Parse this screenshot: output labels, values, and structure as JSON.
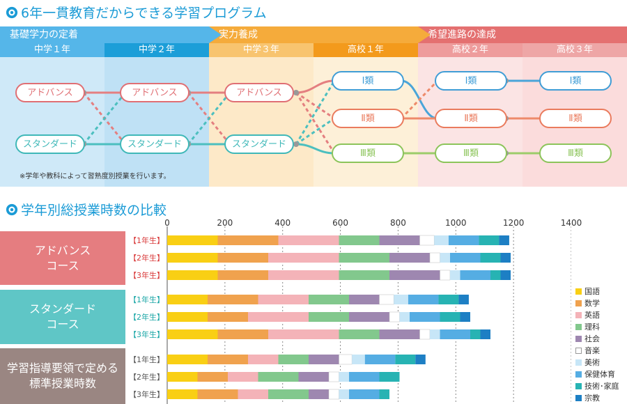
{
  "section1": {
    "title": "6年一貫教育だからできる学習プログラム",
    "phases": [
      {
        "label": "基礎学力の定着",
        "color": "#55b6e9"
      },
      {
        "label": "実力養成",
        "color": "#f5ab3b"
      },
      {
        "label": "希望進路の達成",
        "color": "#e47070"
      }
    ],
    "grades": [
      {
        "label": "中学１年",
        "color": "#55b6e9",
        "bg": "#cfe9f8"
      },
      {
        "label": "中学２年",
        "color": "#1c9ed8",
        "bg": "#bfe1f5"
      },
      {
        "label": "中学３年",
        "color": "#f8c46f",
        "bg": "#fde9c8"
      },
      {
        "label": "高校１年",
        "color": "#f39a1c",
        "bg": "#fdf0d8"
      },
      {
        "label": "高校２年",
        "color": "#ee9c9c",
        "bg": "#fbe4e4"
      },
      {
        "label": "高校３年",
        "color": "#eea6a6",
        "bg": "#fbdcdc"
      }
    ],
    "courses": {
      "advance": "アドバンス",
      "standard": "スタンダード"
    },
    "classes": [
      "Ⅰ類",
      "Ⅱ類",
      "Ⅲ類"
    ],
    "note": "※学年や教科によって習熟度別授業を行います。"
  },
  "section2": {
    "title": "学年別総授業時数の比較",
    "groups": [
      {
        "label": "アドバンス\nコース",
        "color": "#e57d80"
      },
      {
        "label": "スタンダード\nコース",
        "color": "#5fc6c6"
      },
      {
        "label": "学習指導要領で定める\n標準授業時数",
        "color": "#9a8682"
      }
    ]
  },
  "chart_data": {
    "type": "bar",
    "orientation": "horizontal",
    "stacked": true,
    "xlim": [
      0,
      1400
    ],
    "xticks": [
      0,
      200,
      400,
      600,
      800,
      1000,
      1200,
      1400
    ],
    "legend_position": "right",
    "subjects": [
      {
        "name": "国語",
        "color": "#f9cf14"
      },
      {
        "name": "数学",
        "color": "#f0a24e"
      },
      {
        "name": "英語",
        "color": "#f4b3b8"
      },
      {
        "name": "理科",
        "color": "#82c88d"
      },
      {
        "name": "社会",
        "color": "#9e87b0"
      },
      {
        "name": "音楽",
        "color": "#ffffff"
      },
      {
        "name": "美術",
        "color": "#c7e6f7"
      },
      {
        "name": "保健体育",
        "color": "#55ade3"
      },
      {
        "name": "技術･家庭",
        "color": "#27b3b3"
      },
      {
        "name": "宗教",
        "color": "#1d7fc4"
      }
    ],
    "rows": [
      {
        "group": 0,
        "label": "【1年生】",
        "values": [
          175,
          210,
          210,
          140,
          140,
          50,
          50,
          105,
          70,
          35
        ]
      },
      {
        "group": 0,
        "label": "【2年生】",
        "values": [
          175,
          175,
          245,
          175,
          140,
          35,
          35,
          105,
          70,
          35
        ]
      },
      {
        "group": 0,
        "label": "【3年生】",
        "values": [
          175,
          175,
          245,
          175,
          175,
          35,
          35,
          105,
          35,
          35
        ]
      },
      {
        "group": 1,
        "label": "【1年生】",
        "values": [
          140,
          175,
          175,
          140,
          105,
          50,
          50,
          105,
          70,
          35
        ]
      },
      {
        "group": 1,
        "label": "【2年生】",
        "values": [
          140,
          140,
          210,
          140,
          140,
          35,
          35,
          105,
          70,
          35
        ]
      },
      {
        "group": 1,
        "label": "【3年生】",
        "values": [
          175,
          175,
          245,
          140,
          140,
          35,
          35,
          105,
          35,
          35
        ]
      },
      {
        "group": 2,
        "label": "【1年生】",
        "values": [
          140,
          140,
          105,
          105,
          105,
          45,
          45,
          105,
          70,
          35
        ]
      },
      {
        "group": 2,
        "label": "【2年生】",
        "values": [
          105,
          105,
          105,
          140,
          105,
          35,
          35,
          105,
          70,
          0
        ]
      },
      {
        "group": 2,
        "label": "【3年生】",
        "values": [
          105,
          140,
          105,
          140,
          70,
          35,
          35,
          105,
          35,
          0
        ]
      }
    ]
  }
}
